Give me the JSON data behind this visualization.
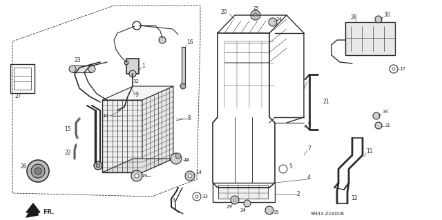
{
  "bg_color": "#ffffff",
  "diagram_color": "#2a2a2a",
  "fig_width": 6.4,
  "fig_height": 3.19,
  "dpi": 100,
  "watermark": "SM43-Z04008",
  "fr_text": "FR."
}
